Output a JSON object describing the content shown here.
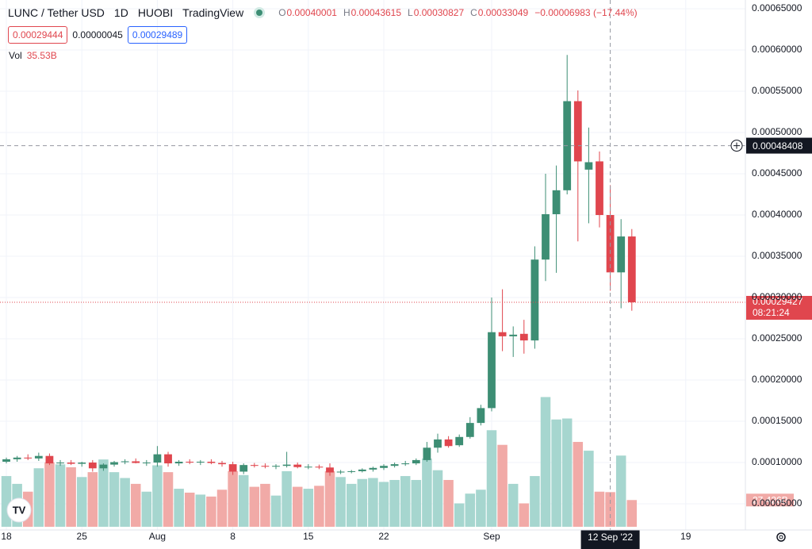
{
  "chart_data": {
    "type": "candlestick",
    "header": {
      "symbol": "LUNC / Tether USD",
      "interval": "1D",
      "exchange": "HUOBI",
      "source": "TradingView"
    },
    "ohlc_legend": {
      "open": {
        "label": "O",
        "value": 0.00040001
      },
      "high": {
        "label": "H",
        "value": 0.00043615
      },
      "low": {
        "label": "L",
        "value": 0.00030827
      },
      "close": {
        "label": "C",
        "value": 0.00033049
      },
      "change": "−0.00006983 (−17.44%)"
    },
    "quote_boxes": {
      "sell": "0.00029444",
      "spread": "0.00000045",
      "buy": "0.00029489"
    },
    "volume_legend": {
      "label": "Vol",
      "value": 35.53,
      "value_label": "35.53B"
    },
    "up_color": "#3d8e74",
    "down_color": "#e0464e",
    "volume_up_color": "#a6d6cf",
    "volume_down_color": "#f1aaa7",
    "x": [
      0,
      1,
      2,
      3,
      4,
      5,
      6,
      7,
      8,
      9,
      10,
      11,
      12,
      13,
      14,
      15,
      16,
      17,
      18,
      19,
      20,
      21,
      22,
      23,
      24,
      25,
      26,
      27,
      28,
      29,
      30,
      31,
      32,
      33,
      34,
      35,
      36,
      37,
      38,
      39,
      40,
      41,
      42,
      43,
      44,
      45,
      46,
      47,
      48,
      49,
      50,
      51,
      52,
      53,
      54,
      55,
      56,
      57,
      58
    ],
    "open": [
      0.000101,
      0.000104,
      0.000106,
      0.000105,
      0.000108,
      9.9e-05,
      0.0001,
      9.85e-05,
      0.0001,
      9.3e-05,
      9.75e-05,
      0.0001005,
      0.0001015,
      9.95e-05,
      0.0001,
      0.00011,
      9.9e-05,
      0.000101,
      0.0001,
      0.000101,
      9.95e-05,
      9.8e-05,
      8.9e-05,
      9.7e-05,
      9.6e-05,
      9.5e-05,
      9.6e-05,
      9.75e-05,
      9.45e-05,
      9.5e-05,
      9.4e-05,
      8.8e-05,
      8.9e-05,
      8.95e-05,
      9.15e-05,
      9.35e-05,
      9.6e-05,
      9.8e-05,
      9.9e-05,
      0.000103,
      0.000118,
      0.000128,
      0.000121,
      0.000131,
      0.000148,
      0.000166,
      0.000258,
      0.000253,
      0.000256,
      0.000248,
      0.000346,
      0.000401,
      0.00043,
      0.000538,
      0.000455,
      0.000465,
      0.00040001,
      0.00033049,
      0.000374
    ],
    "high": [
      0.000106,
      0.000108,
      0.00011,
      0.000112,
      0.000111,
      0.000103,
      0.000103,
      0.000101,
      0.000103,
      9.9e-05,
      0.000102,
      0.000104,
      0.000105,
      0.000103,
      0.00012,
      0.000113,
      0.000103,
      0.000104,
      0.000103,
      0.000104,
      0.000102,
      0.000101,
      9.9e-05,
      9.95e-05,
      9.9e-05,
      9.8e-05,
      0.000113,
      0.0001,
      9.8e-05,
      9.75e-05,
      9.9e-05,
      9.1e-05,
      9.1e-05,
      9.3e-05,
      9.5e-05,
      9.8e-05,
      0.0001,
      0.000102,
      0.000105,
      0.000125,
      0.000135,
      0.000132,
      0.000134,
      0.000155,
      0.00017,
      0.0003,
      0.00031,
      0.000265,
      0.000273,
      0.000362,
      0.00045,
      0.00046,
      0.000594,
      0.000551,
      0.000506,
      0.000477,
      0.00043615,
      0.000395,
      0.000383
    ],
    "low": [
      9.9e-05,
      0.000101,
      0.000103,
      0.000102,
      9.7e-05,
      9.6e-05,
      9.7e-05,
      9.5e-05,
      8.9e-05,
      9e-05,
      9.5e-05,
      9.8e-05,
      9.9e-05,
      9.6e-05,
      9.5e-05,
      9.5e-05,
      9.6e-05,
      9.8e-05,
      9.7e-05,
      9.8e-05,
      9.5e-05,
      8.5e-05,
      8.6e-05,
      9.4e-05,
      9.3e-05,
      9.2e-05,
      9.4e-05,
      9.3e-05,
      9.2e-05,
      9.2e-05,
      8.4e-05,
      8.6e-05,
      8.7e-05,
      8.8e-05,
      8.9e-05,
      9.1e-05,
      9.4e-05,
      9.6e-05,
      9.7e-05,
      0.000101,
      0.000112,
      0.000118,
      0.000119,
      0.000129,
      0.000145,
      0.000162,
      0.000235,
      0.000228,
      0.000232,
      0.000238,
      0.00032,
      0.00033,
      0.000425,
      0.000368,
      0.00039,
      0.000385,
      0.00030827,
      0.000287,
      0.000284
    ],
    "close": [
      0.000104,
      0.000106,
      0.000105,
      0.000108,
      9.9e-05,
      0.0001,
      9.85e-05,
      0.0001,
      9.3e-05,
      9.75e-05,
      0.0001005,
      0.0001015,
      9.95e-05,
      0.0001,
      0.00011,
      9.9e-05,
      0.000101,
      0.0001,
      0.000101,
      9.95e-05,
      9.8e-05,
      8.9e-05,
      9.7e-05,
      9.6e-05,
      9.5e-05,
      9.6e-05,
      9.75e-05,
      9.45e-05,
      9.5e-05,
      9.4e-05,
      8.8e-05,
      8.9e-05,
      8.95e-05,
      9.15e-05,
      9.35e-05,
      9.6e-05,
      9.8e-05,
      9.9e-05,
      0.000103,
      0.000118,
      0.000128,
      0.00012,
      0.000131,
      0.000148,
      0.000166,
      0.000258,
      0.000253,
      0.000255,
      0.000248,
      0.000346,
      0.000401,
      0.00043,
      0.000538,
      0.000465,
      0.000464,
      0.0004,
      0.00033049,
      0.000374,
      0.00029427
    ],
    "volume": [
      52,
      44,
      36,
      60,
      66,
      64,
      61,
      51,
      56,
      69,
      56,
      50,
      44,
      36,
      63,
      56,
      39,
      35,
      33,
      31,
      38,
      57,
      53,
      41,
      44,
      32,
      57,
      41,
      39,
      42,
      57,
      51,
      44,
      49,
      50,
      46,
      48,
      52,
      48,
      70,
      58,
      48,
      24,
      34,
      38,
      99,
      84,
      44,
      24,
      52,
      133,
      110,
      111,
      87,
      78,
      36,
      35.53,
      73,
      27.426
    ],
    "last_volume": {
      "value": 27.426,
      "label": "27.426B"
    },
    "xlim": [
      -0.59,
      68.53
    ],
    "xticks": [
      {
        "value": 0,
        "label": "18"
      },
      {
        "value": 7,
        "label": "25"
      },
      {
        "value": 14,
        "label": "Aug"
      },
      {
        "value": 21,
        "label": "8"
      },
      {
        "value": 28,
        "label": "15"
      },
      {
        "value": 35,
        "label": "22"
      },
      {
        "value": 45,
        "label": "Sep"
      },
      {
        "value": 63,
        "label": "19"
      }
    ],
    "ylim": [
      1.83e-05,
      0.0006606
    ],
    "yticks": [
      {
        "value": 5e-05,
        "label": "0.00005000"
      },
      {
        "value": 0.0001,
        "label": "0.00010000"
      },
      {
        "value": 0.00015,
        "label": "0.00015000"
      },
      {
        "value": 0.0002,
        "label": "0.00020000"
      },
      {
        "value": 0.00025,
        "label": "0.00025000"
      },
      {
        "value": 0.0003,
        "label": "0.00030000"
      },
      {
        "value": 0.00035,
        "label": "0.00035000"
      },
      {
        "value": 0.0004,
        "label": "0.00040000"
      },
      {
        "value": 0.00045,
        "label": "0.00045000"
      },
      {
        "value": 0.0005,
        "label": "0.00050000"
      },
      {
        "value": 0.00055,
        "label": "0.00055000"
      },
      {
        "value": 0.0006,
        "label": "0.00060000"
      },
      {
        "value": 0.00065,
        "label": "0.00065000"
      }
    ],
    "y2lim": [
      0,
      540
    ],
    "grid": true,
    "crosshair": {
      "x": 56,
      "x_label": "12 Sep '22",
      "y": 0.00048408
    },
    "last_price": {
      "value": 0.00029427,
      "countdown": "08:21:24"
    }
  }
}
